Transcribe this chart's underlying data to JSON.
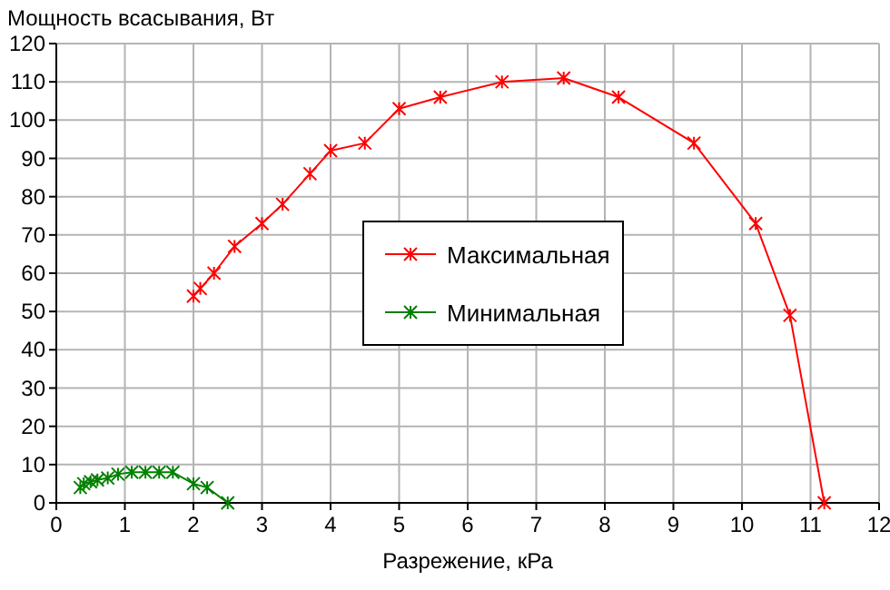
{
  "chart_data": {
    "type": "line",
    "ylabel": "Мощность всасывания, Вт",
    "xlabel": "Разрежение, кРа",
    "xlim": [
      0,
      12
    ],
    "xticks": [
      0,
      1,
      2,
      3,
      4,
      5,
      6,
      7,
      8,
      9,
      10,
      11,
      12
    ],
    "ylim": [
      0,
      120
    ],
    "yticks": [
      0,
      10,
      20,
      30,
      40,
      50,
      60,
      70,
      80,
      90,
      100,
      110,
      120
    ],
    "grid": true,
    "legend": "center",
    "marker": "cross",
    "line_style": "solid",
    "series": [
      {
        "name": "Максимальная",
        "color": "#ff0000",
        "x": [
          2.0,
          2.1,
          2.3,
          2.6,
          3.0,
          3.3,
          3.7,
          4.0,
          4.5,
          5.0,
          5.6,
          6.5,
          7.4,
          8.2,
          9.3,
          10.2,
          10.7,
          11.2
        ],
        "values": [
          54,
          56,
          60,
          67,
          73,
          78,
          86,
          92,
          94,
          103,
          106,
          110,
          111,
          106,
          94,
          73,
          49,
          0
        ]
      },
      {
        "name": "Минимальная",
        "color": "#008000",
        "x": [
          0.35,
          0.4,
          0.5,
          0.6,
          0.75,
          0.9,
          1.1,
          1.3,
          1.5,
          1.7,
          2.0,
          2.2,
          2.5
        ],
        "values": [
          4,
          5,
          5.5,
          6,
          6.5,
          7.5,
          8,
          8,
          8,
          8,
          5,
          4,
          0
        ]
      }
    ]
  }
}
